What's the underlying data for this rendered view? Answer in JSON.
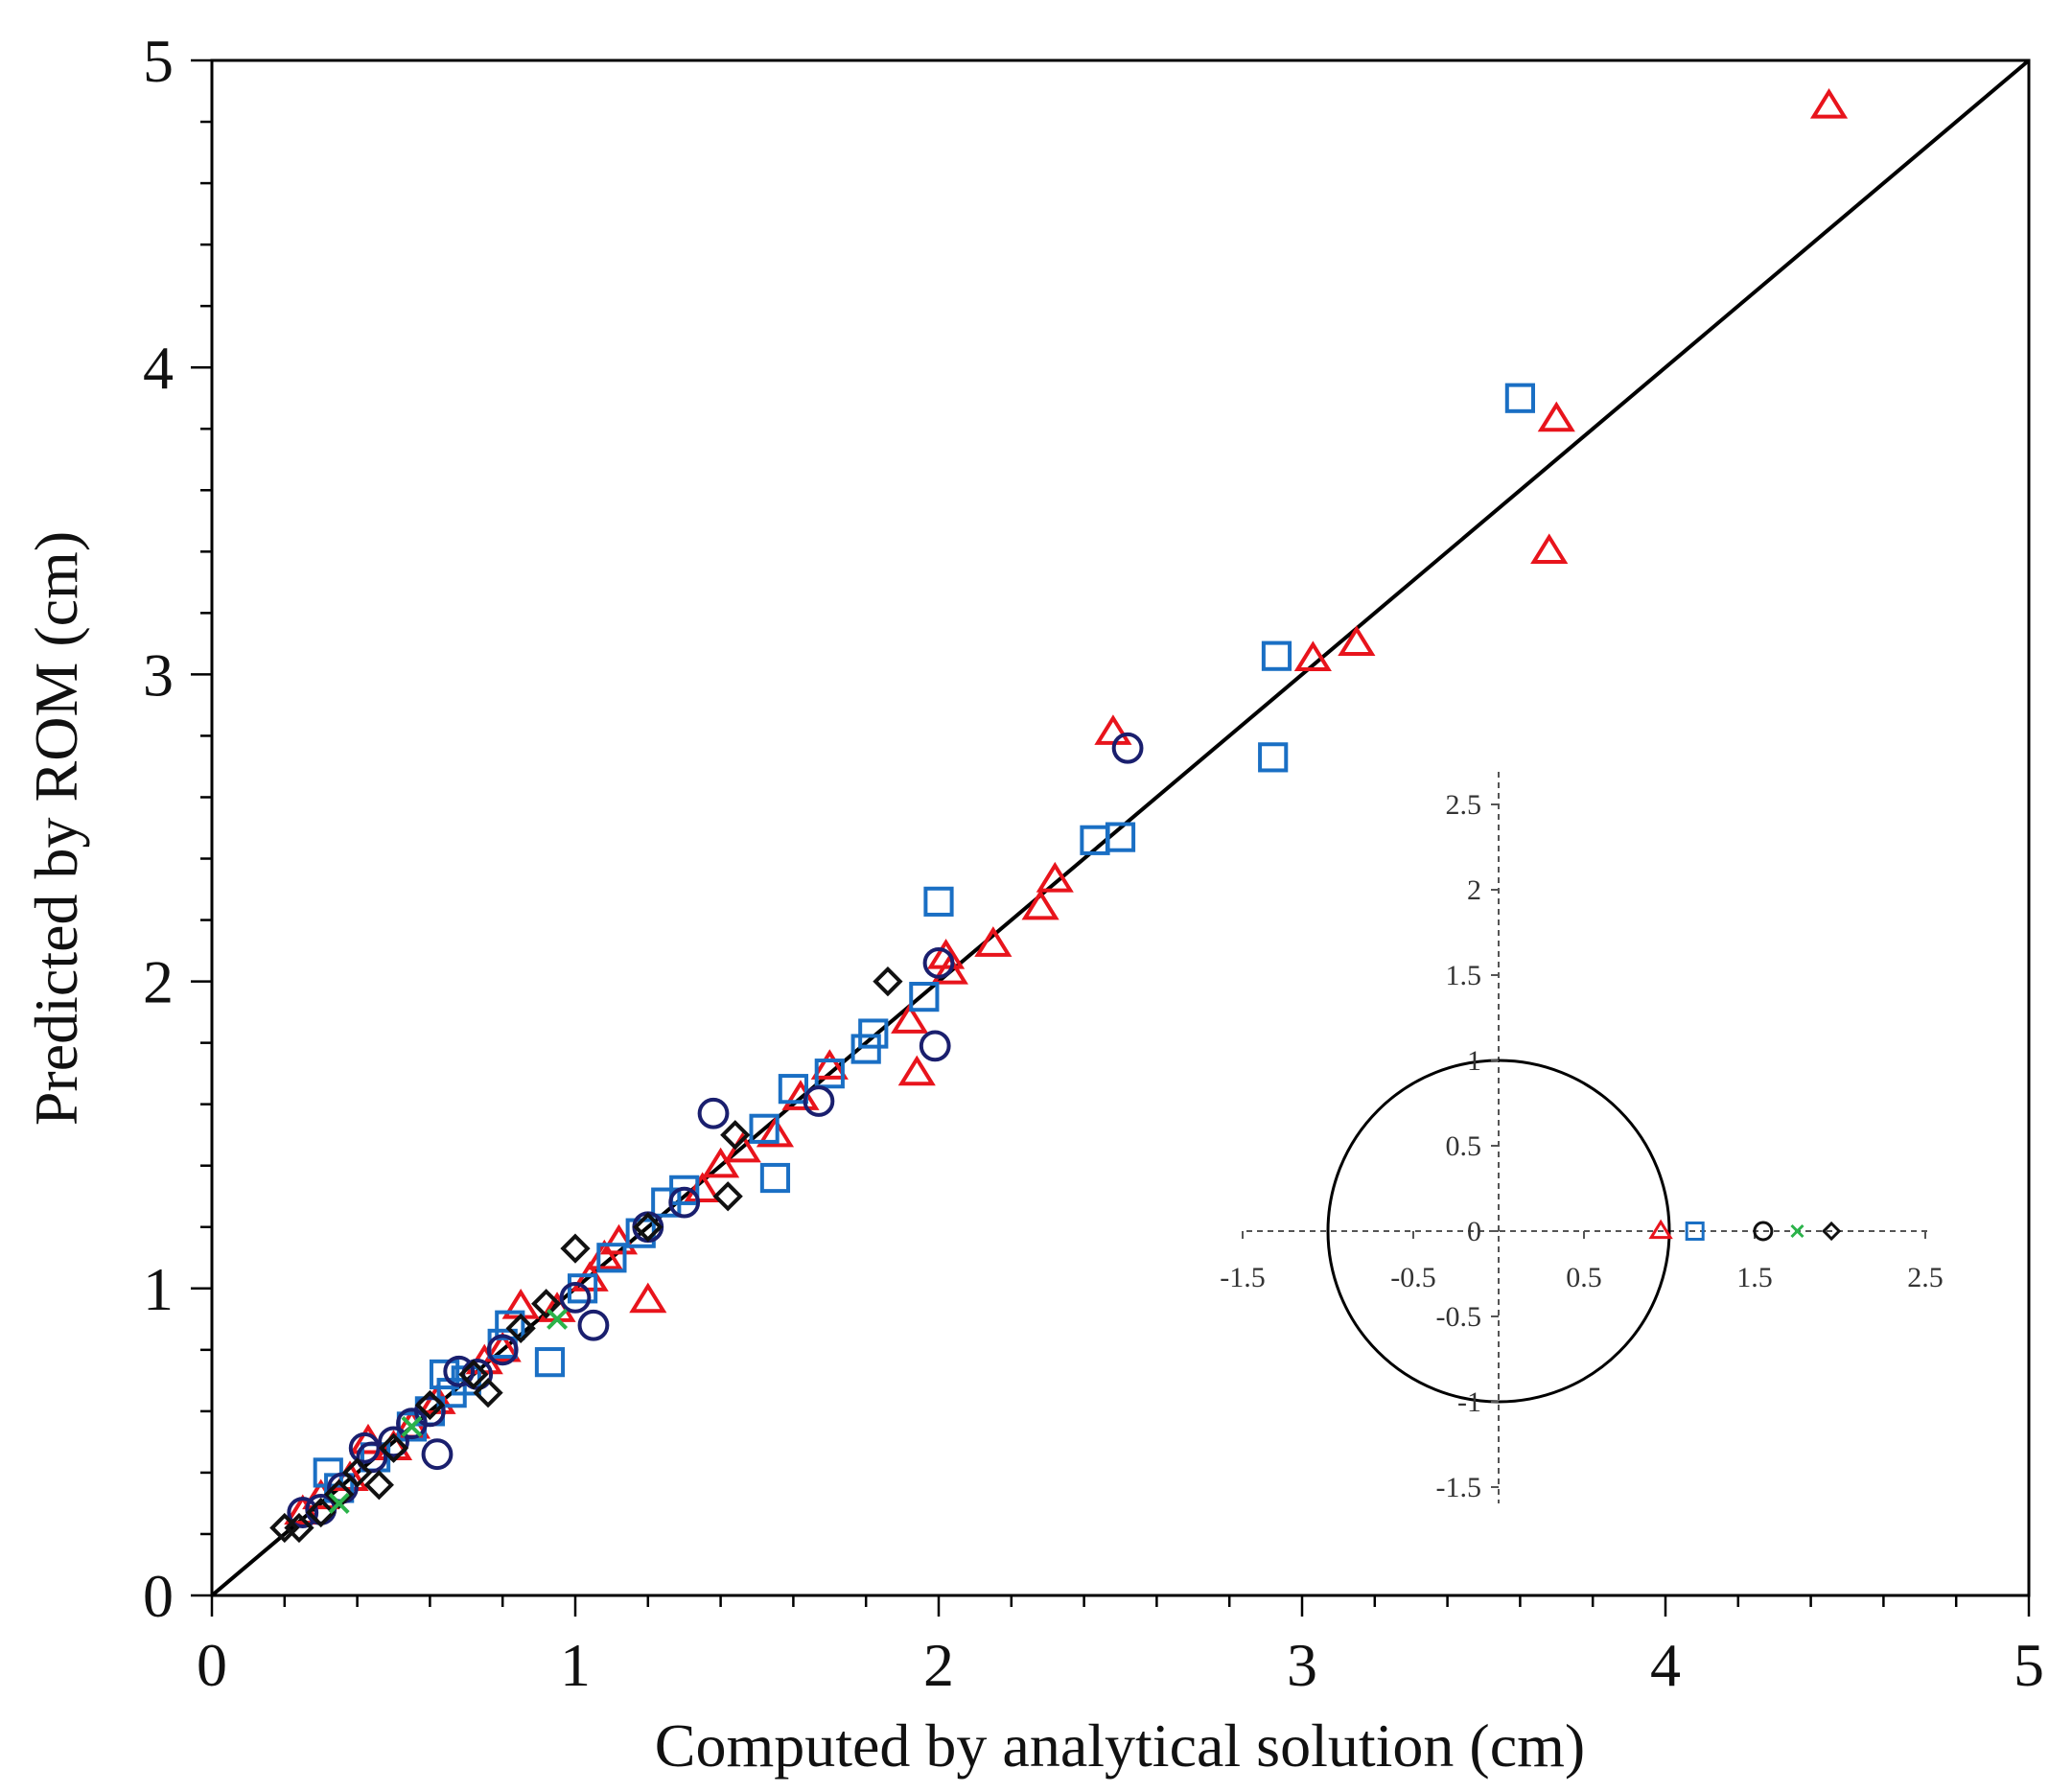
{
  "chart_data": [
    {
      "id": "main",
      "type": "scatter",
      "xlabel": "Computed by analytical solution (cm)",
      "ylabel": "Predicted by ROM (cm)",
      "xlim": [
        0,
        5
      ],
      "ylim": [
        0,
        5
      ],
      "xticks": [
        "0",
        "1",
        "2",
        "3",
        "4",
        "5"
      ],
      "yticks": [
        "0",
        "1",
        "2",
        "3",
        "4",
        "5"
      ],
      "reference_line": {
        "x": [
          0,
          5
        ],
        "y": [
          0,
          5
        ]
      },
      "series": [
        {
          "name": "red-triangles",
          "marker": "triangle",
          "color": "#e8141c",
          "points": [
            [
              4.45,
              4.85
            ],
            [
              3.7,
              3.83
            ],
            [
              3.68,
              3.4
            ],
            [
              3.15,
              3.1
            ],
            [
              3.03,
              3.05
            ],
            [
              2.48,
              2.81
            ],
            [
              2.32,
              2.33
            ],
            [
              2.28,
              2.24
            ],
            [
              2.15,
              2.12
            ],
            [
              2.03,
              2.03
            ],
            [
              2.02,
              2.08
            ],
            [
              1.92,
              1.87
            ],
            [
              1.94,
              1.7
            ],
            [
              1.7,
              1.72
            ],
            [
              1.62,
              1.62
            ],
            [
              1.55,
              1.5
            ],
            [
              1.46,
              1.45
            ],
            [
              1.4,
              1.4
            ],
            [
              1.35,
              1.32
            ],
            [
              1.2,
              0.96
            ],
            [
              1.12,
              1.15
            ],
            [
              1.08,
              1.1
            ],
            [
              1.04,
              1.03
            ],
            [
              0.95,
              0.93
            ],
            [
              0.85,
              0.94
            ],
            [
              0.8,
              0.8
            ],
            [
              0.75,
              0.76
            ],
            [
              0.62,
              0.63
            ],
            [
              0.55,
              0.55
            ],
            [
              0.5,
              0.48
            ],
            [
              0.43,
              0.5
            ],
            [
              0.38,
              0.38
            ],
            [
              0.3,
              0.32
            ],
            [
              0.25,
              0.27
            ]
          ]
        },
        {
          "name": "blue-squares",
          "marker": "square",
          "color": "#1a6fc4",
          "points": [
            [
              3.6,
              3.9
            ],
            [
              2.93,
              3.06
            ],
            [
              2.92,
              2.73
            ],
            [
              2.5,
              2.47
            ],
            [
              2.43,
              2.46
            ],
            [
              2.0,
              2.26
            ],
            [
              1.96,
              1.95
            ],
            [
              1.82,
              1.83
            ],
            [
              1.8,
              1.78
            ],
            [
              1.7,
              1.7
            ],
            [
              1.6,
              1.65
            ],
            [
              1.55,
              1.36
            ],
            [
              1.52,
              1.52
            ],
            [
              1.3,
              1.32
            ],
            [
              1.25,
              1.28
            ],
            [
              1.18,
              1.18
            ],
            [
              1.1,
              1.1
            ],
            [
              1.02,
              1.0
            ],
            [
              0.93,
              0.76
            ],
            [
              0.82,
              0.88
            ],
            [
              0.8,
              0.82
            ],
            [
              0.7,
              0.7
            ],
            [
              0.66,
              0.66
            ],
            [
              0.64,
              0.72
            ],
            [
              0.6,
              0.6
            ],
            [
              0.55,
              0.55
            ],
            [
              0.45,
              0.45
            ],
            [
              0.35,
              0.35
            ],
            [
              0.32,
              0.4
            ]
          ]
        },
        {
          "name": "navy-circles",
          "marker": "circle",
          "color": "#1a1f6e",
          "points": [
            [
              2.52,
              2.76
            ],
            [
              2.0,
              2.06
            ],
            [
              1.99,
              1.79
            ],
            [
              1.67,
              1.61
            ],
            [
              1.38,
              1.57
            ],
            [
              1.3,
              1.28
            ],
            [
              1.2,
              1.2
            ],
            [
              1.05,
              0.88
            ],
            [
              1.0,
              0.97
            ],
            [
              0.8,
              0.8
            ],
            [
              0.73,
              0.72
            ],
            [
              0.68,
              0.73
            ],
            [
              0.62,
              0.46
            ],
            [
              0.6,
              0.6
            ],
            [
              0.55,
              0.56
            ],
            [
              0.5,
              0.5
            ],
            [
              0.44,
              0.45
            ],
            [
              0.42,
              0.48
            ],
            [
              0.36,
              0.35
            ],
            [
              0.3,
              0.28
            ],
            [
              0.25,
              0.27
            ]
          ]
        },
        {
          "name": "black-diamonds",
          "marker": "diamond",
          "color": "#111111",
          "points": [
            [
              1.86,
              2.0
            ],
            [
              1.44,
              1.5
            ],
            [
              1.42,
              1.3
            ],
            [
              1.2,
              1.2
            ],
            [
              1.0,
              1.13
            ],
            [
              0.92,
              0.95
            ],
            [
              0.85,
              0.87
            ],
            [
              0.76,
              0.66
            ],
            [
              0.72,
              0.72
            ],
            [
              0.6,
              0.62
            ],
            [
              0.5,
              0.48
            ],
            [
              0.46,
              0.36
            ],
            [
              0.4,
              0.4
            ],
            [
              0.35,
              0.33
            ],
            [
              0.3,
              0.27
            ],
            [
              0.24,
              0.22
            ],
            [
              0.2,
              0.22
            ]
          ]
        },
        {
          "name": "green-crosses",
          "marker": "x",
          "color": "#2bb34a",
          "points": [
            [
              0.95,
              0.9
            ],
            [
              0.55,
              0.55
            ],
            [
              0.35,
              0.3
            ]
          ]
        }
      ]
    },
    {
      "id": "inset",
      "type": "scatter",
      "xlim": [
        -1.5,
        2.5
      ],
      "ylim": [
        -1.5,
        2.5
      ],
      "xticks": [
        "-1.5",
        "-0.5",
        "0.5",
        "1.5",
        "2.5"
      ],
      "yticks": [
        "2.5",
        "2",
        "1.5",
        "1",
        "0.5",
        "0",
        "-0.5",
        "-1",
        "-1.5"
      ],
      "unit_circle": {
        "cx": 0,
        "cy": 0,
        "r": 1
      },
      "series": [
        {
          "name": "red-triangle",
          "marker": "triangle",
          "color": "#e8141c",
          "points": [
            [
              0.95,
              0
            ]
          ]
        },
        {
          "name": "blue-square",
          "marker": "square",
          "color": "#1a6fc4",
          "points": [
            [
              1.15,
              0
            ]
          ]
        },
        {
          "name": "black-circle",
          "marker": "circle",
          "color": "#111111",
          "points": [
            [
              1.55,
              0
            ]
          ]
        },
        {
          "name": "green-cross",
          "marker": "x",
          "color": "#2bb34a",
          "points": [
            [
              1.75,
              0
            ]
          ]
        },
        {
          "name": "black-diamond",
          "marker": "diamond",
          "color": "#111111",
          "points": [
            [
              1.95,
              0
            ]
          ]
        }
      ]
    }
  ]
}
